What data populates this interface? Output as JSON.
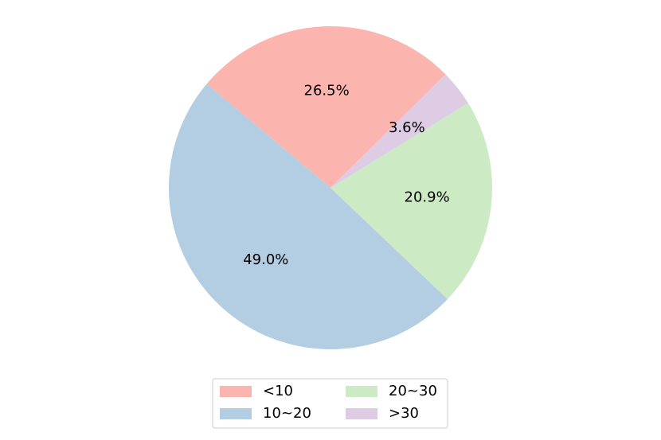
{
  "chart_data": {
    "type": "pie",
    "categories": [
      "<10",
      "10~20",
      "20~30",
      ">30"
    ],
    "values": [
      26.5,
      49.0,
      20.9,
      3.6
    ],
    "value_labels": [
      "26.5%",
      "49.0%",
      "20.9%",
      "3.6%"
    ],
    "colors": [
      "#fbb4ae",
      "#b3cde3",
      "#ccebc5",
      "#decbe4"
    ],
    "legend": "bottom"
  }
}
